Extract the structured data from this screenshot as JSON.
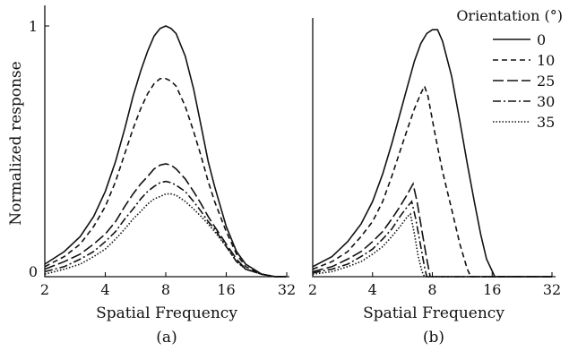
{
  "chart_data": [
    {
      "type": "line",
      "panel_label": "(a)",
      "xlabel": "Spatial Frequency",
      "ylabel": "Normalized response",
      "x_scale": "log2",
      "xlim": [
        2,
        32
      ],
      "ylim": [
        0,
        1
      ],
      "x_ticks": [
        "2",
        "4",
        "8",
        "16",
        "32"
      ],
      "y_ticks": [
        "0",
        "1"
      ],
      "x": [
        2,
        2.5,
        3,
        3.5,
        4,
        4.5,
        5,
        5.5,
        6,
        6.5,
        7,
        7.5,
        8,
        8.5,
        9,
        10,
        11,
        12,
        13,
        14,
        16,
        18,
        20,
        24,
        28,
        32
      ],
      "series": [
        {
          "name": "0",
          "dash": "solid",
          "values": [
            0.05,
            0.1,
            0.16,
            0.24,
            0.34,
            0.46,
            0.59,
            0.72,
            0.82,
            0.9,
            0.96,
            0.99,
            1.0,
            0.99,
            0.97,
            0.88,
            0.75,
            0.6,
            0.46,
            0.36,
            0.2,
            0.1,
            0.05,
            0.01,
            0.0,
            0.0
          ]
        },
        {
          "name": "10",
          "dash": "6 4",
          "values": [
            0.04,
            0.08,
            0.13,
            0.2,
            0.28,
            0.38,
            0.49,
            0.59,
            0.67,
            0.73,
            0.77,
            0.79,
            0.79,
            0.78,
            0.76,
            0.68,
            0.58,
            0.48,
            0.38,
            0.3,
            0.18,
            0.09,
            0.04,
            0.01,
            0.0,
            0.0
          ]
        },
        {
          "name": "25",
          "dash": "12 4",
          "values": [
            0.03,
            0.06,
            0.09,
            0.13,
            0.17,
            0.22,
            0.28,
            0.33,
            0.37,
            0.4,
            0.43,
            0.445,
            0.45,
            0.445,
            0.43,
            0.39,
            0.34,
            0.29,
            0.24,
            0.2,
            0.13,
            0.07,
            0.03,
            0.01,
            0.0,
            0.0
          ]
        },
        {
          "name": "30",
          "dash": "9 3 2 3",
          "values": [
            0.02,
            0.04,
            0.07,
            0.1,
            0.14,
            0.18,
            0.23,
            0.27,
            0.31,
            0.34,
            0.36,
            0.375,
            0.38,
            0.375,
            0.365,
            0.34,
            0.3,
            0.26,
            0.22,
            0.19,
            0.12,
            0.06,
            0.03,
            0.01,
            0.0,
            0.0
          ]
        },
        {
          "name": "35",
          "dash": "1.5 2",
          "values": [
            0.01,
            0.03,
            0.05,
            0.08,
            0.11,
            0.15,
            0.19,
            0.23,
            0.26,
            0.29,
            0.31,
            0.32,
            0.33,
            0.33,
            0.325,
            0.3,
            0.27,
            0.24,
            0.21,
            0.18,
            0.12,
            0.06,
            0.03,
            0.01,
            0.0,
            0.0
          ]
        }
      ]
    },
    {
      "type": "line",
      "panel_label": "(b)",
      "xlabel": "Spatial Frequency",
      "x_scale": "log2",
      "xlim": [
        2,
        32
      ],
      "ylim": [
        0,
        1
      ],
      "x_ticks": [
        "2",
        "4",
        "8",
        "16",
        "32"
      ],
      "legend_title": "Orientation (°)",
      "legend_position": "top-right",
      "series": [
        {
          "name": "0",
          "dash": "solid",
          "points": [
            [
              2,
              0.04
            ],
            [
              2.5,
              0.08
            ],
            [
              3,
              0.14
            ],
            [
              3.5,
              0.21
            ],
            [
              4,
              0.3
            ],
            [
              4.5,
              0.41
            ],
            [
              5,
              0.53
            ],
            [
              5.5,
              0.65
            ],
            [
              6,
              0.76
            ],
            [
              6.5,
              0.86
            ],
            [
              7,
              0.93
            ],
            [
              7.5,
              0.97
            ],
            [
              8,
              0.985
            ],
            [
              8.5,
              0.985
            ],
            [
              9,
              0.94
            ],
            [
              10,
              0.8
            ],
            [
              11,
              0.62
            ],
            [
              12,
              0.45
            ],
            [
              13,
              0.3
            ],
            [
              14,
              0.17
            ],
            [
              15,
              0.07
            ],
            [
              16.5,
              0.0
            ],
            [
              20,
              0.0
            ],
            [
              24,
              0.0
            ],
            [
              28,
              0.0
            ],
            [
              32,
              0.0
            ]
          ]
        },
        {
          "name": "10",
          "dash": "6 4",
          "points": [
            [
              2,
              0.03
            ],
            [
              2.5,
              0.06
            ],
            [
              3,
              0.1
            ],
            [
              3.5,
              0.16
            ],
            [
              4,
              0.22
            ],
            [
              4.5,
              0.3
            ],
            [
              5,
              0.4
            ],
            [
              5.5,
              0.5
            ],
            [
              6,
              0.59
            ],
            [
              6.5,
              0.67
            ],
            [
              7,
              0.73
            ],
            [
              7.3,
              0.76
            ],
            [
              7.6,
              0.72
            ],
            [
              8.2,
              0.58
            ],
            [
              9,
              0.42
            ],
            [
              10,
              0.27
            ],
            [
              11,
              0.13
            ],
            [
              12,
              0.03
            ],
            [
              12.5,
              0.0
            ],
            [
              16,
              0.0
            ],
            [
              20,
              0.0
            ],
            [
              24,
              0.0
            ],
            [
              28,
              0.0
            ],
            [
              32,
              0.0
            ]
          ]
        },
        {
          "name": "25",
          "dash": "12 4",
          "points": [
            [
              2,
              0.02
            ],
            [
              2.5,
              0.04
            ],
            [
              3,
              0.07
            ],
            [
              3.5,
              0.1
            ],
            [
              4,
              0.14
            ],
            [
              4.5,
              0.18
            ],
            [
              5,
              0.23
            ],
            [
              5.5,
              0.28
            ],
            [
              6,
              0.33
            ],
            [
              6.4,
              0.37
            ],
            [
              6.7,
              0.3
            ],
            [
              7.1,
              0.18
            ],
            [
              7.5,
              0.07
            ],
            [
              7.8,
              0.0
            ],
            [
              10,
              0.0
            ],
            [
              16,
              0.0
            ],
            [
              24,
              0.0
            ],
            [
              32,
              0.0
            ]
          ]
        },
        {
          "name": "30",
          "dash": "9 3 2 3",
          "points": [
            [
              2,
              0.015
            ],
            [
              2.5,
              0.03
            ],
            [
              3,
              0.05
            ],
            [
              3.5,
              0.08
            ],
            [
              4,
              0.11
            ],
            [
              4.5,
              0.15
            ],
            [
              5,
              0.19
            ],
            [
              5.5,
              0.24
            ],
            [
              6,
              0.28
            ],
            [
              6.3,
              0.3
            ],
            [
              6.6,
              0.23
            ],
            [
              7,
              0.12
            ],
            [
              7.3,
              0.04
            ],
            [
              7.5,
              0.0
            ],
            [
              10,
              0.0
            ],
            [
              16,
              0.0
            ],
            [
              24,
              0.0
            ],
            [
              32,
              0.0
            ]
          ]
        },
        {
          "name": "35",
          "dash": "1.5 2",
          "points": [
            [
              2,
              0.01
            ],
            [
              2.5,
              0.02
            ],
            [
              3,
              0.04
            ],
            [
              3.5,
              0.06
            ],
            [
              4,
              0.09
            ],
            [
              4.5,
              0.12
            ],
            [
              5,
              0.16
            ],
            [
              5.5,
              0.2
            ],
            [
              6,
              0.24
            ],
            [
              6.2,
              0.25
            ],
            [
              6.5,
              0.17
            ],
            [
              6.8,
              0.08
            ],
            [
              7.1,
              0.02
            ],
            [
              7.3,
              0.0
            ],
            [
              10,
              0.0
            ],
            [
              16,
              0.0
            ],
            [
              24,
              0.0
            ],
            [
              32,
              0.0
            ]
          ]
        }
      ]
    }
  ]
}
